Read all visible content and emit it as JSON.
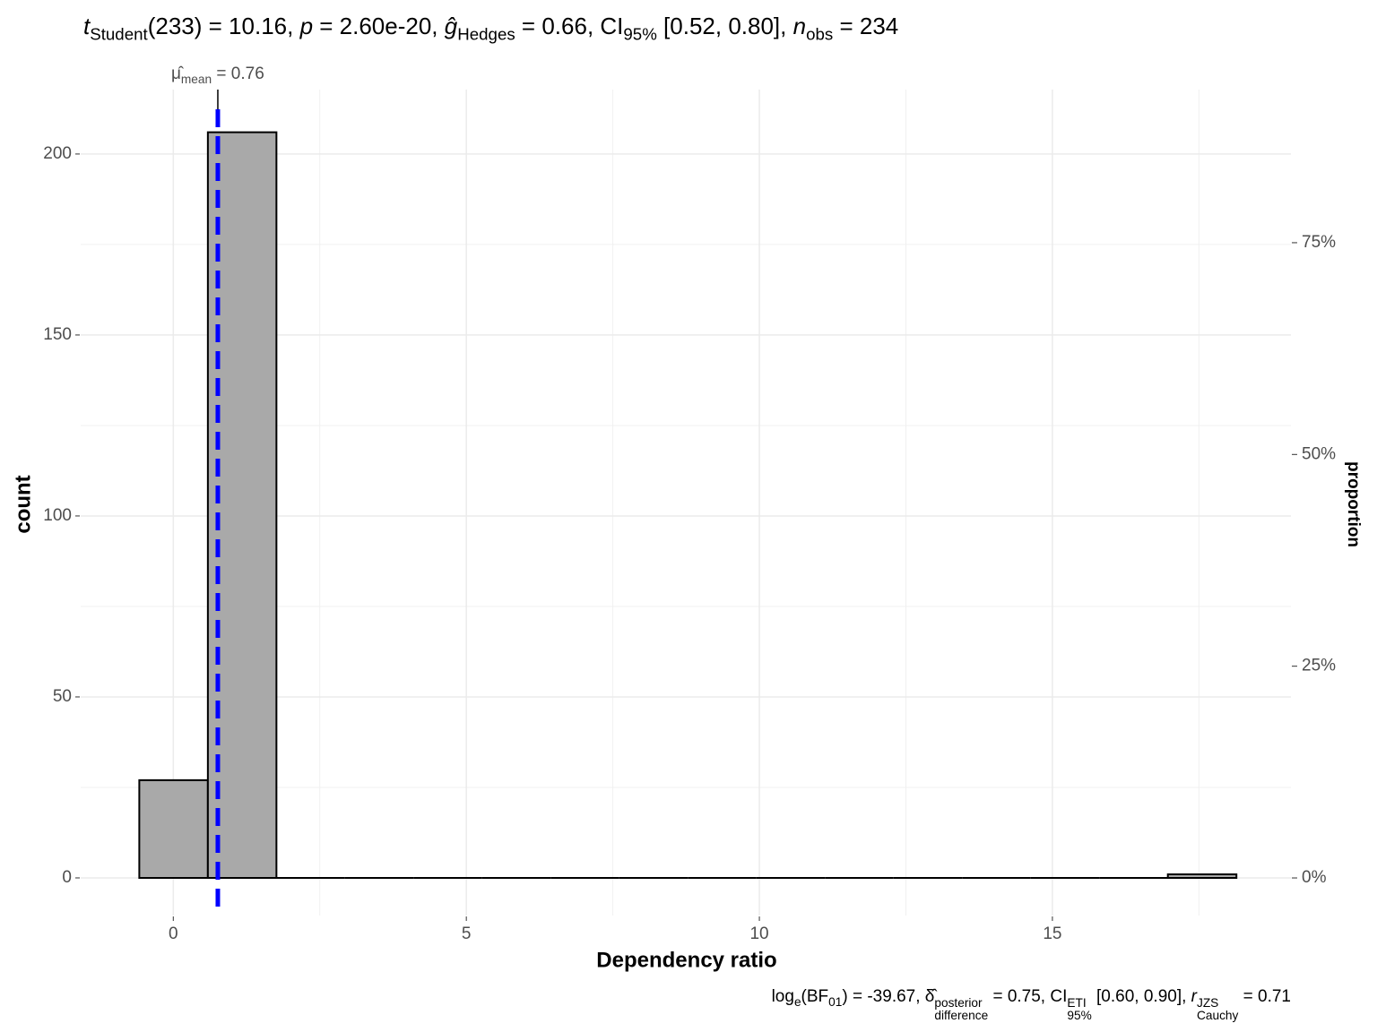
{
  "chart_data": {
    "type": "histogram",
    "title": [
      {
        "text": "t",
        "italic": true
      },
      {
        "text": "Student",
        "sub": true
      },
      {
        "text": "(233) = 10.16, "
      },
      {
        "text": "p",
        "italic": true
      },
      {
        "text": " = 2.60e-20, "
      },
      {
        "text": "ĝ",
        "italic": true
      },
      {
        "text": "Hedges",
        "sub": true
      },
      {
        "text": " = 0.66, CI"
      },
      {
        "text": "95%",
        "sub": true
      },
      {
        "text": " [0.52, 0.80], "
      },
      {
        "text": "n",
        "italic": true
      },
      {
        "text": "obs",
        "sub": true
      },
      {
        "text": " = 234"
      }
    ],
    "caption": [
      {
        "text": "log"
      },
      {
        "text": "e",
        "sub": true
      },
      {
        "text": "(BF"
      },
      {
        "text": "01",
        "sub": true
      },
      {
        "text": ") = -39.67, δ̂"
      },
      {
        "sup": "posterior",
        "sub": "difference"
      },
      {
        "text": " = 0.75, CI"
      },
      {
        "sup": "ETI",
        "sub": "95%"
      },
      {
        "text": " [0.60, 0.90], "
      },
      {
        "text": "r",
        "italic": true
      },
      {
        "sup": "JZS",
        "sub": "Cauchy"
      },
      {
        "text": " = 0.71"
      }
    ],
    "x_label": "Dependency ratio",
    "y_label": "count",
    "y2_label": "proportion",
    "bins": [
      -0.58,
      0.59,
      1.76,
      2.93,
      4.1,
      5.27,
      6.44,
      7.61,
      8.78,
      9.95,
      11.12,
      12.29,
      13.46,
      14.63,
      15.8,
      16.97,
      18.14
    ],
    "values": [
      27,
      206,
      0,
      0,
      0,
      0,
      0,
      0,
      0,
      0,
      0,
      0,
      0,
      0,
      0,
      1
    ],
    "color": "#a9a9a9",
    "edge_color": "#000000",
    "xlim": [
      -1.58,
      19.07
    ],
    "ylim": [
      -10.4,
      217.8
    ],
    "xticks": [
      0,
      5,
      10,
      15
    ],
    "yticks": [
      0,
      50,
      100,
      150,
      200
    ],
    "y2lim": [
      -4.44,
      93.08
    ],
    "y2ticks": [
      {
        "value": 0,
        "label": "0%"
      },
      {
        "value": 25,
        "label": "25%"
      },
      {
        "value": 50,
        "label": "50%"
      },
      {
        "value": 75,
        "label": "75%"
      }
    ],
    "grid": true,
    "mean": {
      "value": 0.76,
      "color": "#0000ff",
      "label": [
        {
          "text": "μ̂"
        },
        {
          "text": "mean",
          "sub": true
        },
        {
          "text": " = 0.76"
        }
      ]
    }
  }
}
